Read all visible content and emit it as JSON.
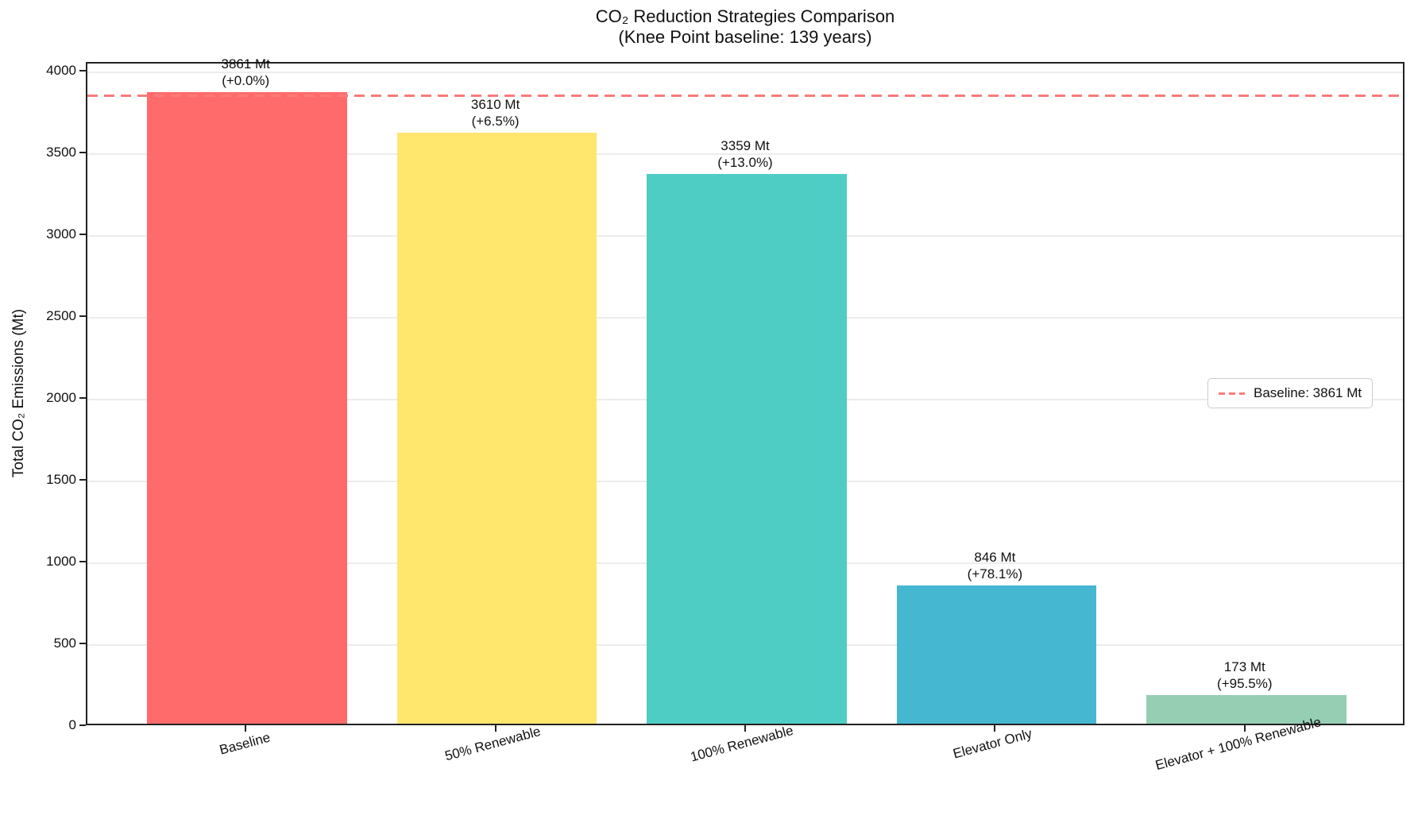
{
  "chart_data": {
    "type": "bar",
    "title": "CO₂ Reduction Strategies Comparison",
    "subtitle": "(Knee Point baseline: 139 years)",
    "ylabel": "Total CO₂ Emissions (Mt)",
    "xlabel": "",
    "categories": [
      "Baseline",
      "50% Renewable",
      "100% Renewable",
      "Elevator Only",
      "Elevator + 100% Renewable"
    ],
    "values": [
      3861,
      3610,
      3359,
      846,
      173
    ],
    "annotations": [
      [
        "3861 Mt",
        "(+0.0%)"
      ],
      [
        "3610 Mt",
        "(+6.5%)"
      ],
      [
        "3359 Mt",
        "(+13.0%)"
      ],
      [
        "846 Mt",
        "(+78.1%)"
      ],
      [
        "173 Mt",
        "(+95.5%)"
      ]
    ],
    "bar_colors": [
      "#FF6B6B",
      "#FFE66D",
      "#4ECDC4",
      "#45B7D1",
      "#96CEB4"
    ],
    "yticks": [
      0,
      500,
      1000,
      1500,
      2000,
      2500,
      3000,
      3500,
      4000
    ],
    "ylim": [
      0,
      4054
    ],
    "grid": true,
    "baseline": {
      "value": 3861,
      "color": "#FB7A7A",
      "legend_label": "Baseline: 3861 Mt"
    },
    "legend_position": "center-right"
  }
}
